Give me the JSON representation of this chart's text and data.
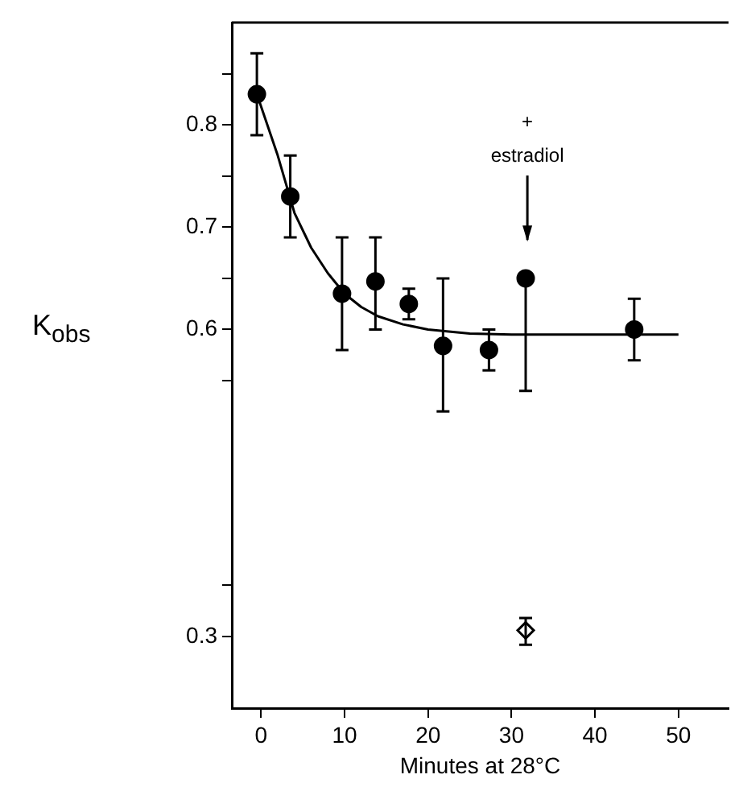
{
  "chart_data": {
    "type": "scatter",
    "ylabel": "K$_{obs}$",
    "xlabel": "Minutes at 28°C",
    "xlim": [
      -3.5,
      56
    ],
    "ylim": [
      0.23,
      0.9
    ],
    "xticks": [
      0,
      10,
      20,
      30,
      40,
      50
    ],
    "yticks": [
      0.3,
      {
        "value": 0.35,
        "label": null
      },
      {
        "value": 0.55,
        "label": null
      },
      0.6,
      {
        "value": 0.65,
        "label": null
      },
      0.7,
      {
        "value": 0.75,
        "label": null
      },
      0.8,
      {
        "value": 0.85,
        "label": null
      }
    ],
    "annotations": [
      "+",
      "estradiol"
    ],
    "series": [
      {
        "marker": "circle",
        "color": "#000000",
        "x": [
          -0.5,
          3.5,
          9.7,
          13.7,
          17.7,
          21.8,
          27.3,
          31.7,
          44.7
        ],
        "values": [
          0.83,
          0.73,
          0.635,
          0.647,
          0.625,
          0.584,
          0.58,
          0.65,
          0.6
        ],
        "errors": [
          [
            0.79,
            0.87
          ],
          [
            0.69,
            0.77
          ],
          [
            0.58,
            0.69
          ],
          [
            0.6,
            0.69
          ],
          [
            0.61,
            0.64
          ],
          [
            0.52,
            0.65
          ],
          [
            0.56,
            0.6
          ],
          [
            0.54,
            0.65
          ],
          [
            0.57,
            0.63
          ]
        ]
      },
      {
        "type": "line",
        "marker": "none",
        "color": "#000000",
        "x": [
          -0.5,
          2,
          4,
          6,
          8,
          10,
          12,
          14,
          17,
          20,
          25,
          30,
          50
        ],
        "values": [
          0.83,
          0.77,
          0.714,
          0.68,
          0.655,
          0.635,
          0.622,
          0.613,
          0.605,
          0.6,
          0.596,
          0.595,
          0.595
        ]
      },
      {
        "marker": "diamond",
        "color": "#000000",
        "x": [
          31.7
        ],
        "values": [
          0.306
        ],
        "errors": [
          [
            0.292,
            0.318
          ]
        ]
      }
    ]
  }
}
